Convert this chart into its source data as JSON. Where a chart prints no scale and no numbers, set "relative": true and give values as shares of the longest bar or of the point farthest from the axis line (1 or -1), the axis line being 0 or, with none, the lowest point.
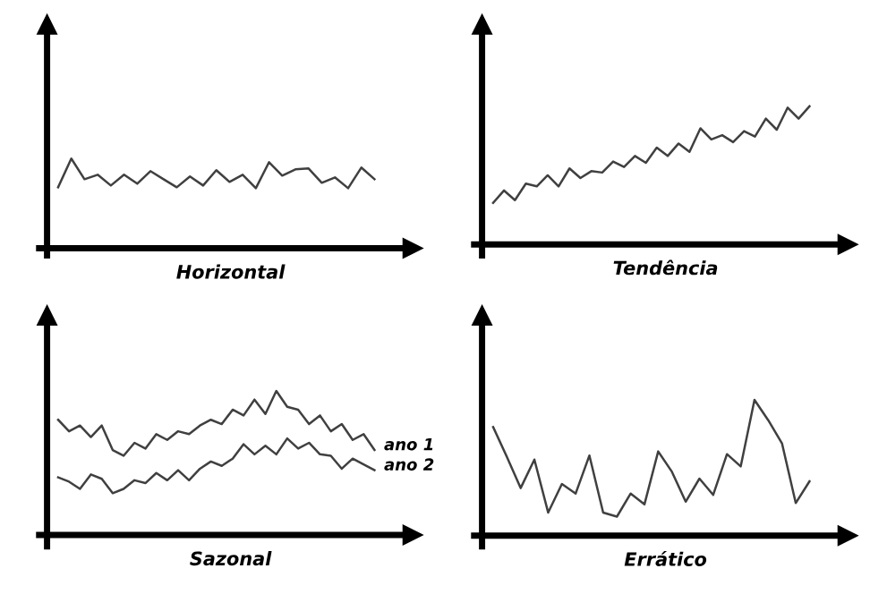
{
  "chart_data": [
    {
      "type": "line",
      "xlabel": "Horizontal",
      "relative": true,
      "categories": [
        null,
        null,
        null,
        null,
        null,
        null,
        null,
        null,
        null,
        null,
        null,
        null,
        null,
        null,
        null,
        null,
        null,
        null,
        null,
        null,
        null,
        null,
        null,
        null,
        null
      ],
      "series": [
        {
          "color": "#404040",
          "values": [
            0.68,
            1.0,
            0.77,
            0.82,
            0.7,
            0.82,
            0.72,
            0.86,
            0.77,
            0.68,
            0.8,
            0.7,
            0.87,
            0.74,
            0.82,
            0.67,
            0.96,
            0.81,
            0.88,
            0.89,
            0.73,
            0.79,
            0.67,
            0.9,
            0.77
          ]
        }
      ]
    },
    {
      "type": "line",
      "xlabel": "Tendência",
      "relative": true,
      "categories": [
        null,
        null,
        null,
        null,
        null,
        null,
        null,
        null,
        null,
        null,
        null,
        null,
        null,
        null,
        null,
        null,
        null,
        null,
        null,
        null,
        null,
        null,
        null,
        null,
        null,
        null,
        null,
        null,
        null,
        null
      ],
      "series": [
        {
          "color": "#404040",
          "values": [
            0.3,
            0.39,
            0.32,
            0.44,
            0.42,
            0.5,
            0.42,
            0.55,
            0.48,
            0.53,
            0.52,
            0.6,
            0.56,
            0.64,
            0.59,
            0.7,
            0.64,
            0.73,
            0.67,
            0.84,
            0.76,
            0.79,
            0.74,
            0.82,
            0.78,
            0.91,
            0.83,
            0.99,
            0.91,
            1.0
          ]
        }
      ]
    },
    {
      "type": "line",
      "xlabel": "Sazonal",
      "relative": true,
      "categories": [
        null,
        null,
        null,
        null,
        null,
        null,
        null,
        null,
        null,
        null,
        null,
        null,
        null,
        null,
        null,
        null,
        null,
        null,
        null,
        null,
        null,
        null,
        null,
        null,
        null,
        null,
        null,
        null,
        null,
        null
      ],
      "series": [
        {
          "name": "ano 1",
          "color": "#404040",
          "values": [
            0.8,
            0.72,
            0.76,
            0.68,
            0.76,
            0.59,
            0.55,
            0.64,
            0.6,
            0.7,
            0.66,
            0.72,
            0.7,
            0.76,
            0.8,
            0.77,
            0.87,
            0.83,
            0.94,
            0.84,
            1.0,
            0.89,
            0.87,
            0.77,
            0.83,
            0.72,
            0.77,
            0.66,
            0.7,
            0.59
          ]
        },
        {
          "name": "ano 2",
          "color": "#404040",
          "values": [
            0.4,
            0.37,
            0.32,
            0.42,
            0.39,
            0.29,
            0.32,
            0.38,
            0.36,
            0.43,
            0.38,
            0.45,
            0.38,
            0.46,
            0.51,
            0.48,
            0.53,
            0.63,
            0.56,
            0.62,
            0.56,
            0.67,
            0.6,
            0.64,
            0.56,
            0.55,
            0.46,
            0.53,
            0.49,
            0.45
          ]
        }
      ]
    },
    {
      "type": "line",
      "xlabel": "Errático",
      "relative": true,
      "categories": [
        null,
        null,
        null,
        null,
        null,
        null,
        null,
        null,
        null,
        null,
        null,
        null,
        null,
        null,
        null,
        null,
        null,
        null,
        null,
        null,
        null,
        null,
        null,
        null
      ],
      "series": [
        {
          "color": "#404040",
          "values": [
            0.8,
            0.58,
            0.35,
            0.56,
            0.17,
            0.38,
            0.31,
            0.59,
            0.17,
            0.14,
            0.31,
            0.23,
            0.62,
            0.47,
            0.25,
            0.42,
            0.3,
            0.6,
            0.51,
            1.0,
            0.85,
            0.68,
            0.24,
            0.4
          ]
        }
      ]
    }
  ]
}
